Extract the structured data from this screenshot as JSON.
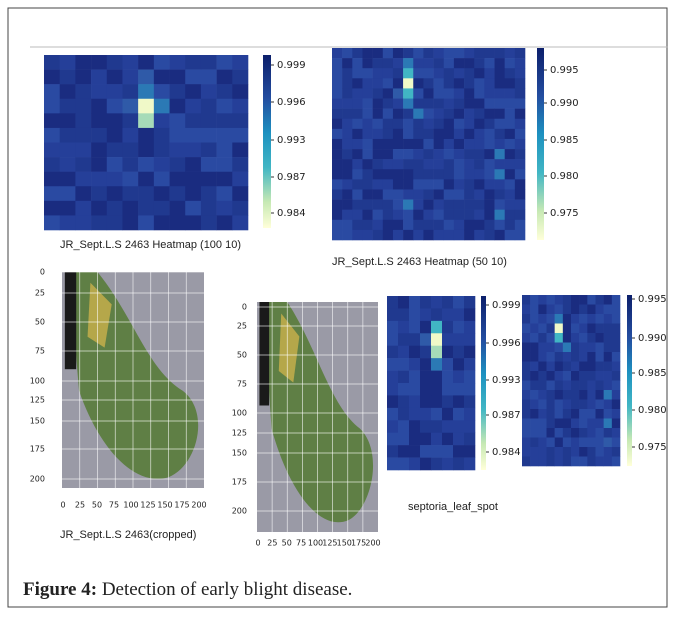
{
  "panels": [
    {
      "caption": "JR_Sept.L.S 2463 Heatmap (100 10)",
      "colorbar_ticks": [
        "0.999",
        "0.996",
        "0.993",
        "0.987",
        "0.984"
      ]
    },
    {
      "caption": "JR_Sept.L.S 2463 Heatmap (50 10)",
      "colorbar_ticks": [
        "0.995",
        "0.990",
        "0.985",
        "0.980",
        "0.975"
      ]
    },
    {
      "caption": "JR_Sept.L.S 2463(cropped)",
      "y_ticks": [
        "0",
        "25",
        "50",
        "75",
        "100",
        "125",
        "150",
        "175",
        "200"
      ],
      "x_ticks": [
        "0",
        "25",
        "50",
        "75",
        "100",
        "125",
        "150",
        "175",
        "200"
      ]
    },
    {
      "y_ticks": [
        "0",
        "25",
        "50",
        "75",
        "100",
        "125",
        "150",
        "175",
        "200"
      ],
      "x_ticks": [
        "0",
        "25",
        "50",
        "75",
        "100",
        "125",
        "150",
        "175",
        "200"
      ]
    },
    {
      "colorbar_ticks": [
        "0.999",
        "0.996",
        "0.993",
        "0.987",
        "0.984"
      ]
    },
    {
      "caption": "septoria_leaf_spot",
      "colorbar_ticks": [
        "0.995",
        "0.990",
        "0.985",
        "0.980",
        "0.975"
      ]
    }
  ],
  "figure_caption": {
    "label": "Figure 4:",
    "text": "Detection of early blight disease."
  }
}
